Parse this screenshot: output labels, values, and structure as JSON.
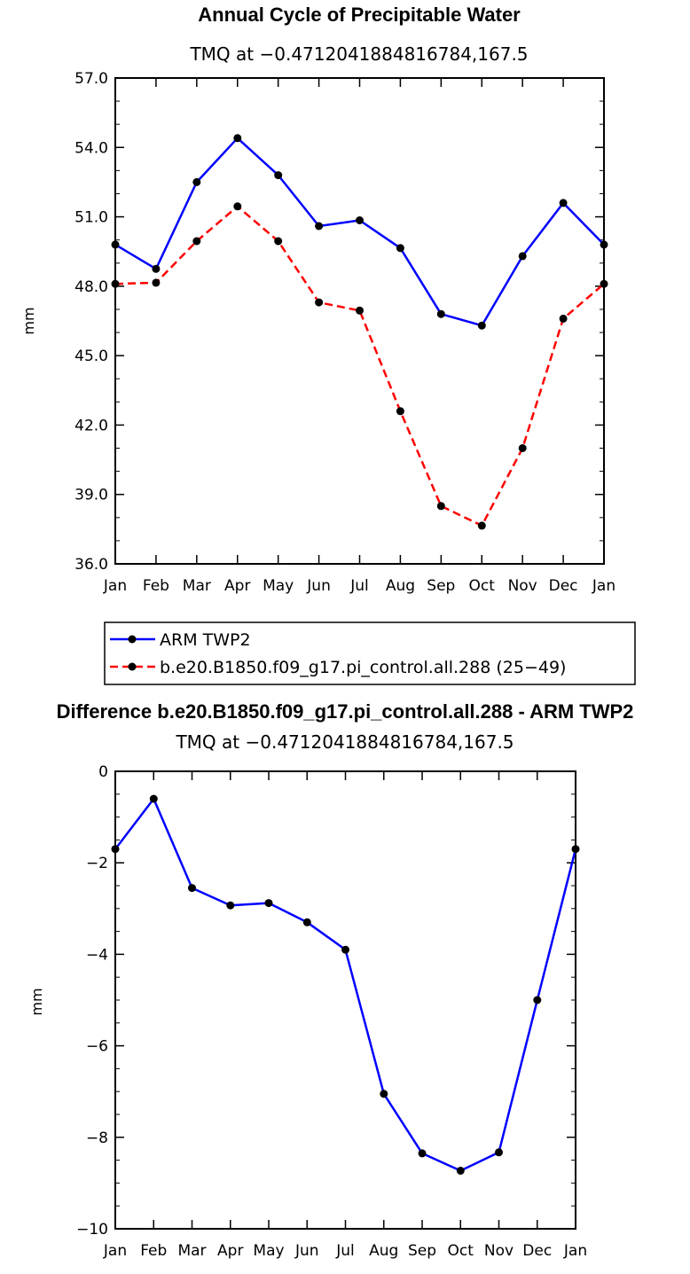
{
  "chart_data": [
    {
      "type": "line",
      "title": "Annual Cycle of Precipitable Water",
      "subtitle": "TMQ at −0.4712041884816784,167.5",
      "xlabel": "",
      "ylabel": "mm",
      "categories": [
        "Jan",
        "Feb",
        "Mar",
        "Apr",
        "May",
        "Jun",
        "Jul",
        "Aug",
        "Sep",
        "Oct",
        "Nov",
        "Dec",
        "Jan"
      ],
      "ylim": [
        36.0,
        57.0
      ],
      "yticks": [
        "57.0",
        "54.0",
        "51.0",
        "48.0",
        "45.0",
        "42.0",
        "39.0",
        "36.0"
      ],
      "series": [
        {
          "name": "ARM TWP2",
          "color": "#0000ff",
          "dash": "solid",
          "values": [
            49.8,
            48.75,
            52.5,
            54.4,
            52.8,
            50.6,
            50.85,
            49.65,
            46.8,
            46.3,
            49.3,
            51.6,
            49.8
          ]
        },
        {
          "name": "b.e20.B1850.f09_g17.pi_control.all.288 (25−49)",
          "color": "#ff0000",
          "dash": "dashed",
          "values": [
            48.1,
            48.15,
            49.95,
            51.45,
            49.95,
            47.3,
            46.95,
            42.6,
            38.5,
            37.65,
            41.0,
            46.6,
            48.1
          ]
        }
      ]
    },
    {
      "type": "line",
      "title": "Difference b.e20.B1850.f09_g17.pi_control.all.288 - ARM TWP2",
      "subtitle": "TMQ at −0.4712041884816784,167.5",
      "xlabel": "",
      "ylabel": "mm",
      "categories": [
        "Jan",
        "Feb",
        "Mar",
        "Apr",
        "May",
        "Jun",
        "Jul",
        "Aug",
        "Sep",
        "Oct",
        "Nov",
        "Dec",
        "Jan"
      ],
      "ylim": [
        -10,
        0
      ],
      "yticks": [
        "0",
        "−2",
        "−4",
        "−6",
        "−8",
        "−10"
      ],
      "series": [
        {
          "name": "Difference",
          "color": "#0000ff",
          "dash": "solid",
          "values": [
            -1.7,
            -0.6,
            -2.55,
            -2.93,
            -2.88,
            -3.3,
            -3.9,
            -7.05,
            -8.35,
            -8.73,
            -8.33,
            -5.0,
            -1.7
          ]
        }
      ]
    }
  ]
}
